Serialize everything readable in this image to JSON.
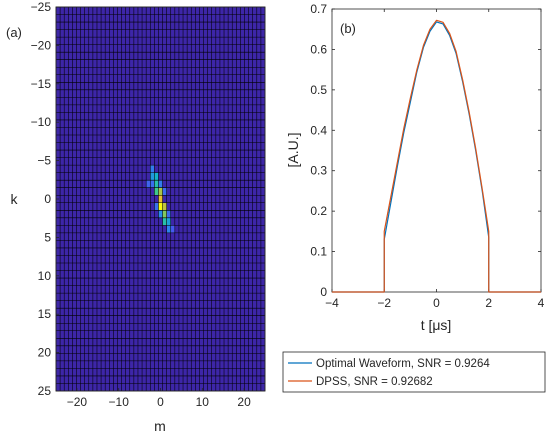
{
  "chart_data": [
    {
      "type": "heatmap",
      "panel_label": "(a)",
      "xlabel": "m",
      "ylabel": "k",
      "xlim": [
        -25,
        25
      ],
      "ylim": [
        -25,
        25
      ],
      "y_reversed": true,
      "xticks": [
        -20,
        -10,
        0,
        10,
        20
      ],
      "yticks": [
        -25,
        -20,
        -15,
        -10,
        -5,
        0,
        5,
        10,
        15,
        20,
        25
      ],
      "ytick_labels": [
        "−25",
        "−20",
        "−15",
        "−10",
        "−5",
        "0",
        "5",
        "10",
        "15",
        "20",
        "25"
      ],
      "xtick_labels": [
        "−20",
        "−10",
        "0",
        "10",
        "20"
      ],
      "grid_lines": true,
      "colormap": "parula",
      "background_color": "#3d26a8",
      "hot_cells": [
        {
          "m": -2,
          "k": -4,
          "v": 0.25
        },
        {
          "m": -2,
          "k": -3,
          "v": 0.35
        },
        {
          "m": -1,
          "k": -3,
          "v": 0.45
        },
        {
          "m": -1,
          "k": -2,
          "v": 0.55
        },
        {
          "m": -1,
          "k": -1,
          "v": 0.62
        },
        {
          "m": 0,
          "k": -1,
          "v": 0.78
        },
        {
          "m": 0,
          "k": 0,
          "v": 0.88
        },
        {
          "m": 0,
          "k": 1,
          "v": 1.0
        },
        {
          "m": 1,
          "k": 1,
          "v": 0.82
        },
        {
          "m": 1,
          "k": 2,
          "v": 0.72
        },
        {
          "m": 1,
          "k": 3,
          "v": 0.55
        },
        {
          "m": 2,
          "k": 3,
          "v": 0.38
        },
        {
          "m": 2,
          "k": 4,
          "v": 0.28
        },
        {
          "m": -3,
          "k": -2,
          "v": 0.18
        },
        {
          "m": 1,
          "k": -1,
          "v": 0.2
        },
        {
          "m": -1,
          "k": 1,
          "v": 0.22
        },
        {
          "m": 2,
          "k": 2,
          "v": 0.2
        },
        {
          "m": -2,
          "k": -2,
          "v": 0.2
        },
        {
          "m": 3,
          "k": 4,
          "v": 0.15
        },
        {
          "m": 0,
          "k": 2,
          "v": 0.3
        },
        {
          "m": 0,
          "k": -2,
          "v": 0.25
        }
      ]
    },
    {
      "type": "line",
      "panel_label": "(b)",
      "xlabel": "t [μs]",
      "ylabel": "[A.U.]",
      "xlim": [
        -4,
        4
      ],
      "ylim": [
        0,
        0.7
      ],
      "xticks": [
        -4,
        -2,
        0,
        2,
        4
      ],
      "xtick_labels": [
        "−4",
        "−2",
        "0",
        "2",
        "4"
      ],
      "yticks": [
        0,
        0.1,
        0.2,
        0.3,
        0.4,
        0.5,
        0.6,
        0.7
      ],
      "ytick_labels": [
        "0",
        "0.1",
        "0.2",
        "0.3",
        "0.4",
        "0.5",
        "0.6",
        "0.7"
      ],
      "legend_position": "below",
      "series": [
        {
          "name": "Optimal Waveform, SNR = 0.9264",
          "color": "#0072bd",
          "x": [
            -4,
            -2.0,
            -2.0,
            -1.75,
            -1.5,
            -1.25,
            -1.0,
            -0.75,
            -0.5,
            -0.25,
            0,
            0.25,
            0.5,
            0.75,
            1.0,
            1.25,
            1.5,
            1.75,
            2.0,
            2.0,
            4
          ],
          "y": [
            0,
            0,
            0.13,
            0.22,
            0.31,
            0.395,
            0.47,
            0.545,
            0.605,
            0.645,
            0.668,
            0.663,
            0.635,
            0.59,
            0.52,
            0.44,
            0.35,
            0.25,
            0.135,
            0,
            0
          ]
        },
        {
          "name": "DPSS, SNR = 0.92682",
          "color": "#d95319",
          "x": [
            -4,
            -2.0,
            -2.0,
            -1.75,
            -1.5,
            -1.25,
            -1.0,
            -0.75,
            -0.5,
            -0.25,
            0,
            0.25,
            0.5,
            0.75,
            1.0,
            1.25,
            1.5,
            1.75,
            2.0,
            2.0,
            4
          ],
          "y": [
            0,
            0,
            0.15,
            0.235,
            0.32,
            0.405,
            0.48,
            0.55,
            0.61,
            0.65,
            0.672,
            0.667,
            0.64,
            0.595,
            0.525,
            0.445,
            0.355,
            0.255,
            0.15,
            0,
            0
          ]
        }
      ]
    }
  ]
}
